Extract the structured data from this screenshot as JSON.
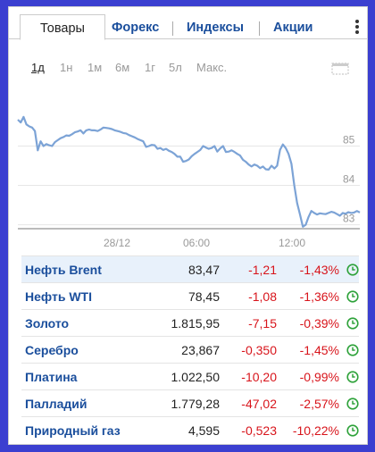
{
  "tabs": [
    {
      "label": "Товары",
      "active": true
    },
    {
      "label": "Форекс"
    },
    {
      "label": "Индексы"
    },
    {
      "label": "Акции"
    }
  ],
  "ranges": [
    {
      "label": "1д",
      "active": true
    },
    {
      "label": "1н"
    },
    {
      "label": "1м"
    },
    {
      "label": "6м"
    },
    {
      "label": "1г"
    },
    {
      "label": "5л"
    },
    {
      "label": "Макс."
    }
  ],
  "chart_data": {
    "type": "line",
    "y_ticks": [
      "85",
      "84",
      "83"
    ],
    "x_ticks": [
      "28/12",
      "06:00",
      "12:00"
    ],
    "ylim": [
      82.9,
      86.6
    ],
    "grid": true,
    "series_color": "#7ca3d6",
    "values": [
      85.67,
      85.6,
      85.74,
      85.55,
      85.5,
      85.47,
      85.38,
      84.89,
      85.12,
      85.0,
      85.05,
      85.02,
      85.0,
      85.1,
      85.15,
      85.2,
      85.23,
      85.27,
      85.26,
      85.3,
      85.35,
      85.37,
      85.4,
      85.32,
      85.4,
      85.42,
      85.4,
      85.4,
      85.38,
      85.42,
      85.47,
      85.46,
      85.45,
      85.43,
      85.4,
      85.38,
      85.36,
      85.33,
      85.32,
      85.28,
      85.25,
      85.22,
      85.18,
      85.15,
      85.12,
      84.98,
      85.0,
      85.03,
      85.02,
      84.93,
      84.95,
      84.9,
      84.93,
      84.88,
      84.85,
      84.8,
      84.73,
      84.73,
      84.6,
      84.62,
      84.66,
      84.74,
      84.8,
      84.85,
      84.9,
      85.0,
      84.96,
      84.93,
      84.95,
      85.0,
      84.86,
      84.94,
      85.0,
      84.85,
      84.86,
      84.89,
      84.85,
      84.8,
      84.76,
      84.65,
      84.6,
      84.53,
      84.48,
      84.53,
      84.5,
      84.44,
      84.48,
      84.41,
      84.4,
      84.5,
      84.43,
      84.5,
      84.9,
      85.04,
      84.95,
      84.8,
      84.55,
      84.0,
      83.55,
      83.26,
      82.95,
      83.0,
      83.2,
      83.35,
      83.3,
      83.26,
      83.29,
      83.28,
      83.27,
      83.3,
      83.33,
      83.31,
      83.27,
      83.23,
      83.3,
      83.28,
      83.32,
      83.3,
      83.31,
      83.35,
      83.31
    ]
  },
  "quotes": [
    {
      "name": "Нефть Brent",
      "price": "83,47",
      "change": "-1,21",
      "percent": "-1,43%"
    },
    {
      "name": "Нефть WTI",
      "price": "78,45",
      "change": "-1,08",
      "percent": "-1,36%"
    },
    {
      "name": "Золото",
      "price": "1.815,95",
      "change": "-7,15",
      "percent": "-0,39%"
    },
    {
      "name": "Серебро",
      "price": "23,867",
      "change": "-0,350",
      "percent": "-1,45%"
    },
    {
      "name": "Платина",
      "price": "1.022,50",
      "change": "-10,20",
      "percent": "-0,99%"
    },
    {
      "name": "Палладий",
      "price": "1.779,28",
      "change": "-47,02",
      "percent": "-2,57%"
    },
    {
      "name": "Природный газ",
      "price": "4,595",
      "change": "-0,523",
      "percent": "-10,22%"
    }
  ],
  "colors": {
    "link": "#1a4e9c",
    "negative": "#d8141b",
    "clock": "#2ea23a",
    "page_background": "#3b3fd0",
    "selected_row": "#e8f1fb"
  },
  "icons": {
    "menu": "kebab-menu-icon",
    "fullscreen": "fullscreen-icon",
    "market_status": "clock-icon"
  }
}
